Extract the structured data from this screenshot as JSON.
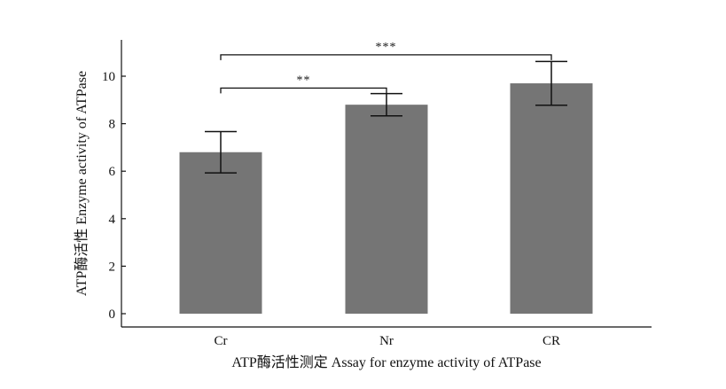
{
  "chart_data": {
    "type": "bar",
    "categories": [
      "Cr",
      "Nr",
      "CR"
    ],
    "values": [
      6.8,
      8.8,
      9.7
    ],
    "error": [
      0.87,
      0.47,
      0.92
    ],
    "ylim": [
      0,
      11.5
    ],
    "yticks": [
      0,
      2,
      4,
      6,
      8,
      10
    ],
    "ylabel": "ATP酶活性 Enzyme activity of ATPase",
    "xlabel": "ATP酶活性测定 Assay for enzyme activity of ATPase",
    "significance": [
      {
        "from": "Cr",
        "to": "Nr",
        "label": "**",
        "y": 9.5
      },
      {
        "from": "Cr",
        "to": "CR",
        "label": "***",
        "y": 10.9
      }
    ],
    "grid": false,
    "bar_color": "#757575"
  }
}
